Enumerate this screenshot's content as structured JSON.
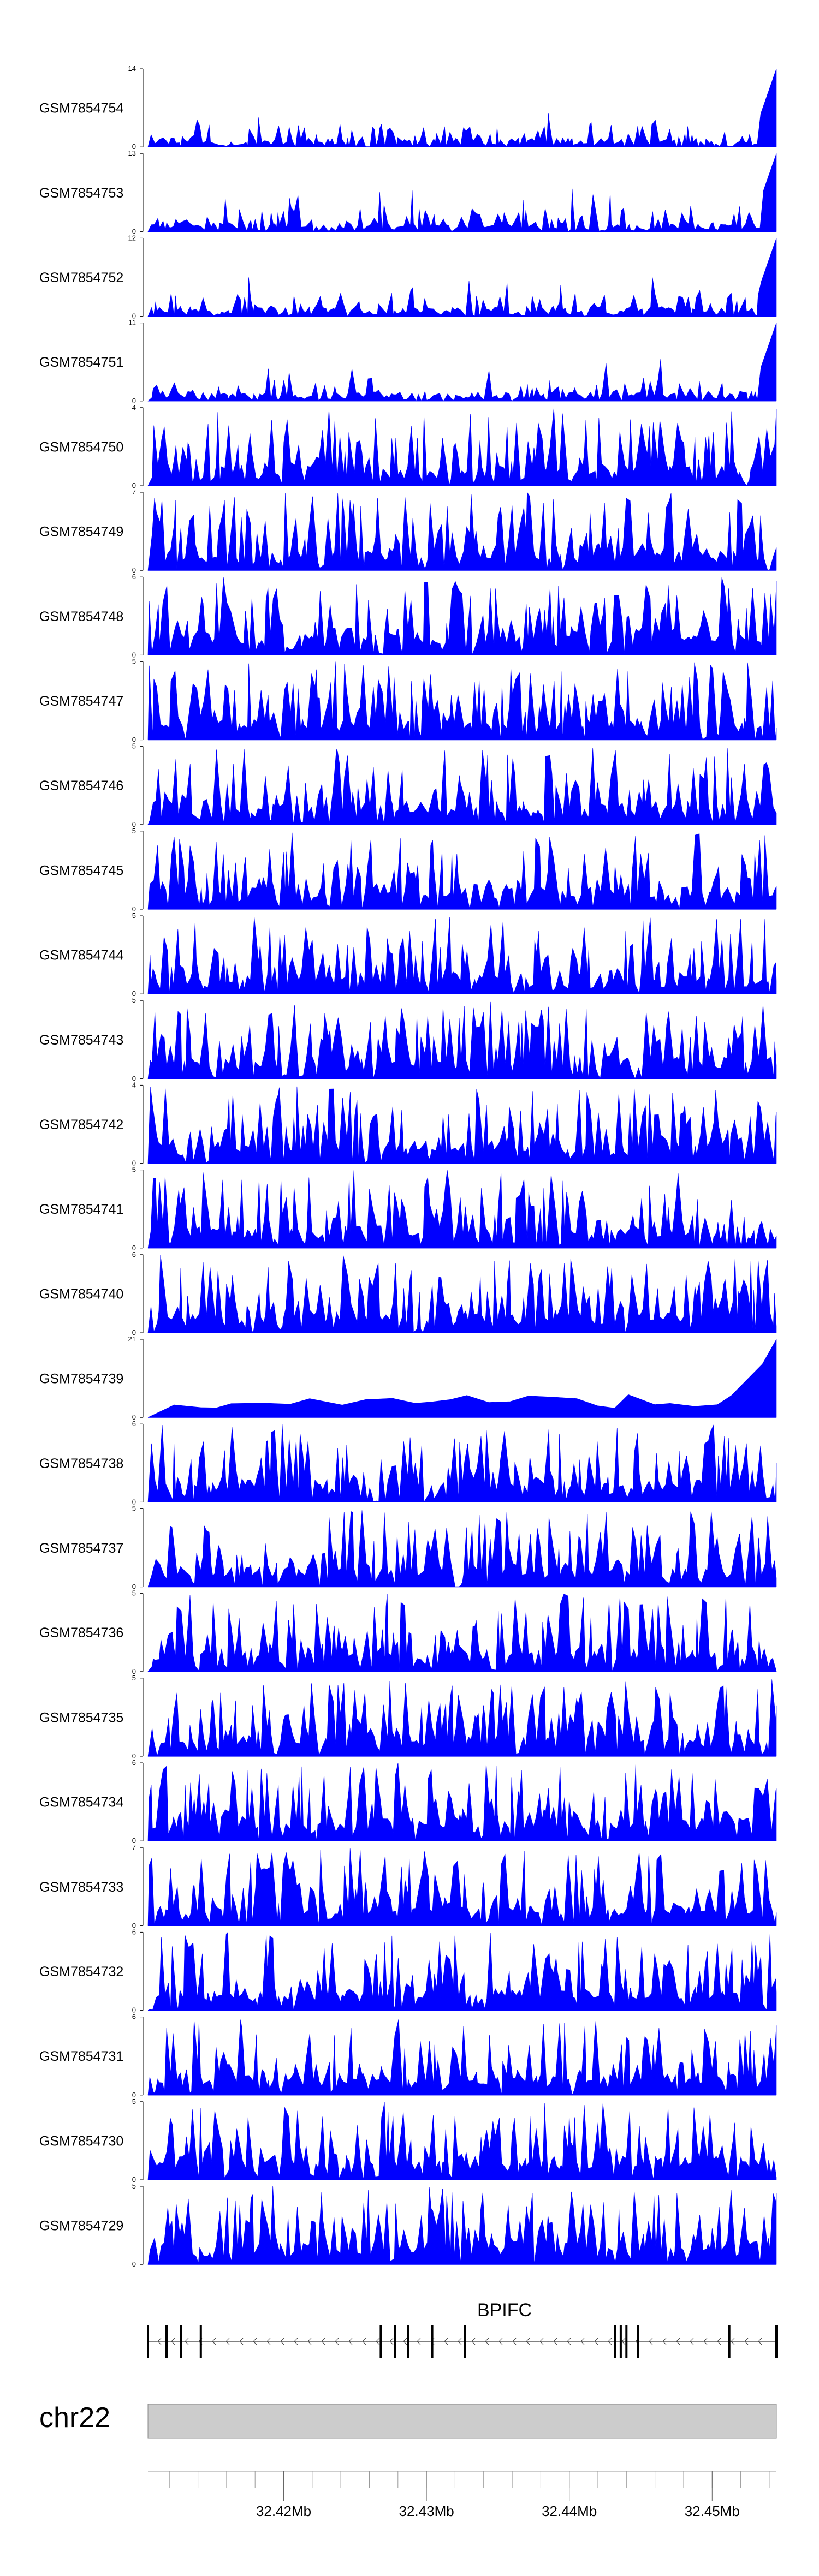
{
  "colors": {
    "signal": "#0000ff",
    "axis": "#000000",
    "ideogram": "#cccccc",
    "ideogram_border": "#888888",
    "gene": "#000000"
  },
  "genome": {
    "chromosome": "chr22",
    "region_start_mb": 32.4105,
    "region_end_mb": 32.4545,
    "minor_tick_step_mb": 0.002,
    "labeled_ticks": [
      {
        "value": 32.42,
        "label": "32.42Mb"
      },
      {
        "value": 32.43,
        "label": "32.43Mb"
      },
      {
        "value": 32.44,
        "label": "32.44Mb"
      },
      {
        "value": 32.45,
        "label": "32.45Mb"
      }
    ]
  },
  "gene": {
    "name": "BPIFC",
    "strand": "-",
    "exons_mb": [
      32.4105,
      32.4118,
      32.4128,
      32.4142,
      32.4268,
      32.4278,
      32.4287,
      32.4304,
      32.4327,
      32.4432,
      32.4436,
      32.444,
      32.4448,
      32.4512,
      32.4545
    ]
  },
  "chart_data": {
    "type": "area",
    "tracks": [
      {
        "name": "GSM7854754",
        "ymin": 0,
        "ymax": 14
      },
      {
        "name": "GSM7854753",
        "ymin": 0,
        "ymax": 13
      },
      {
        "name": "GSM7854752",
        "ymin": 0,
        "ymax": 12
      },
      {
        "name": "GSM7854751",
        "ymin": 0,
        "ymax": 11
      },
      {
        "name": "GSM7854750",
        "ymin": 0,
        "ymax": 4
      },
      {
        "name": "GSM7854749",
        "ymin": 0,
        "ymax": 7
      },
      {
        "name": "GSM7854748",
        "ymin": 0,
        "ymax": 6
      },
      {
        "name": "GSM7854747",
        "ymin": 0,
        "ymax": 5
      },
      {
        "name": "GSM7854746",
        "ymin": 0,
        "ymax": 5
      },
      {
        "name": "GSM7854745",
        "ymin": 0,
        "ymax": 5
      },
      {
        "name": "GSM7854744",
        "ymin": 0,
        "ymax": 5
      },
      {
        "name": "GSM7854743",
        "ymin": 0,
        "ymax": 5
      },
      {
        "name": "GSM7854742",
        "ymin": 0,
        "ymax": 4
      },
      {
        "name": "GSM7854741",
        "ymin": 0,
        "ymax": 5
      },
      {
        "name": "GSM7854740",
        "ymin": 0,
        "ymax": 6
      },
      {
        "name": "GSM7854739",
        "ymin": 0,
        "ymax": 21
      },
      {
        "name": "GSM7854738",
        "ymin": 0,
        "ymax": 6
      },
      {
        "name": "GSM7854737",
        "ymin": 0,
        "ymax": 5
      },
      {
        "name": "GSM7854736",
        "ymin": 0,
        "ymax": 5
      },
      {
        "name": "GSM7854735",
        "ymin": 0,
        "ymax": 5
      },
      {
        "name": "GSM7854734",
        "ymin": 0,
        "ymax": 6
      },
      {
        "name": "GSM7854733",
        "ymin": 0,
        "ymax": 7
      },
      {
        "name": "GSM7854732",
        "ymin": 0,
        "ymax": 6
      },
      {
        "name": "GSM7854731",
        "ymin": 0,
        "ymax": 6
      },
      {
        "name": "GSM7854730",
        "ymin": 0,
        "ymax": 5
      },
      {
        "name": "GSM7854729",
        "ymin": 0,
        "ymax": 5
      }
    ]
  }
}
